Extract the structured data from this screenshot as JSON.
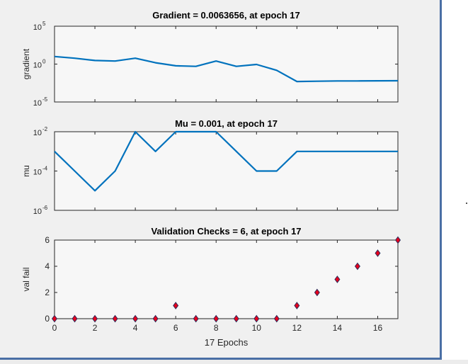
{
  "chart_data": [
    {
      "type": "line",
      "title": "Gradient = 0.0063656, at epoch 17",
      "ylabel": "gradient",
      "xlabel": "",
      "yscale": "log",
      "ylim": [
        1e-05,
        100000.0
      ],
      "xlim": [
        0,
        17
      ],
      "y_ticks": [
        {
          "exp": "-5",
          "value": 1e-05
        },
        {
          "exp": "0",
          "value": 1
        },
        {
          "exp": "5",
          "value": 100000.0
        }
      ],
      "x": [
        0,
        1,
        2,
        3,
        4,
        5,
        6,
        7,
        8,
        9,
        10,
        11,
        12,
        13,
        14,
        15,
        16,
        17
      ],
      "values": [
        10,
        6,
        3,
        2.5,
        6,
        1.5,
        0.6,
        0.5,
        2.5,
        0.5,
        0.9,
        0.15,
        0.005,
        0.0055,
        0.006,
        0.006,
        0.0062,
        0.0063656
      ],
      "color": "#0072bd",
      "grid": false
    },
    {
      "type": "line",
      "title": "Mu = 0.001, at epoch 17",
      "ylabel": "mu",
      "xlabel": "",
      "yscale": "log",
      "ylim": [
        1e-06,
        0.01
      ],
      "xlim": [
        0,
        17
      ],
      "y_ticks": [
        {
          "exp": "-6",
          "value": 1e-06
        },
        {
          "exp": "-4",
          "value": 0.0001
        },
        {
          "exp": "-2",
          "value": 0.01
        }
      ],
      "x": [
        0,
        1,
        2,
        3,
        4,
        5,
        6,
        7,
        8,
        9,
        10,
        11,
        12,
        13,
        14,
        15,
        16,
        17
      ],
      "values": [
        0.001,
        0.0001,
        1e-05,
        0.0001,
        0.01,
        0.001,
        0.01,
        0.01,
        0.01,
        0.001,
        0.0001,
        0.0001,
        0.001,
        0.001,
        0.001,
        0.001,
        0.001,
        0.001
      ],
      "color": "#0072bd",
      "grid": false
    },
    {
      "type": "scatter",
      "title": "Validation Checks = 6, at epoch 17",
      "ylabel": "val fail",
      "xlabel": "17 Epochs",
      "ylim": [
        0,
        6
      ],
      "xlim": [
        0,
        17
      ],
      "y_ticks": [
        0,
        2,
        4,
        6
      ],
      "x_ticks": [
        0,
        2,
        4,
        6,
        8,
        10,
        12,
        14,
        16
      ],
      "x": [
        0,
        1,
        2,
        3,
        4,
        5,
        6,
        7,
        8,
        9,
        10,
        11,
        12,
        13,
        14,
        15,
        16,
        17
      ],
      "values": [
        0,
        0,
        0,
        0,
        0,
        0,
        1,
        0,
        0,
        0,
        0,
        0,
        1,
        2,
        3,
        4,
        5,
        6
      ],
      "marker": "diamond",
      "marker_fill": "#e8001c",
      "marker_edge": "#2d2d5a",
      "grid": false
    }
  ]
}
